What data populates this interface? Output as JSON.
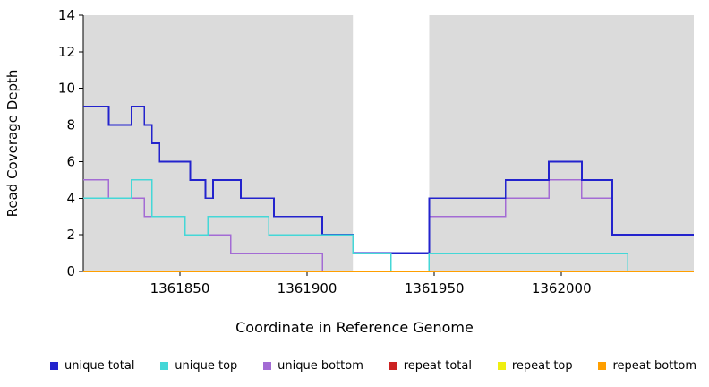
{
  "figure": {
    "background": "#FFFFFF"
  },
  "chart_data": {
    "type": "line",
    "subtype": "step",
    "title": "",
    "xlabel": "Coordinate in Reference Genome",
    "ylabel": "Read Coverage Depth",
    "xlim": [
      1361812,
      1362052
    ],
    "ylim": [
      0,
      14
    ],
    "x_ticks": [
      1361850,
      1361900,
      1361950,
      1362000
    ],
    "y_ticks": [
      0,
      2,
      4,
      6,
      8,
      10,
      12,
      14
    ],
    "grid": false,
    "plot_background": "#DBDBDB",
    "uncovered_region": {
      "from": 1361918,
      "to": 1361948,
      "color": "#FFFFFF"
    },
    "legend_position": "bottom",
    "series": [
      {
        "name": "unique total",
        "color": "#2323CD",
        "points": [
          [
            1361812,
            9
          ],
          [
            1361822,
            8
          ],
          [
            1361831,
            9
          ],
          [
            1361836,
            8
          ],
          [
            1361839,
            7
          ],
          [
            1361842,
            6
          ],
          [
            1361854,
            5
          ],
          [
            1361860,
            4
          ],
          [
            1361863,
            5
          ],
          [
            1361874,
            4
          ],
          [
            1361887,
            3
          ],
          [
            1361906,
            2
          ],
          [
            1361918,
            1
          ],
          [
            1361948,
            4
          ],
          [
            1361978,
            5
          ],
          [
            1361995,
            6
          ],
          [
            1362008,
            5
          ],
          [
            1362020,
            2
          ]
        ]
      },
      {
        "name": "unique top",
        "color": "#44D7D7",
        "points": [
          [
            1361812,
            4
          ],
          [
            1361831,
            5
          ],
          [
            1361839,
            3
          ],
          [
            1361852,
            2
          ],
          [
            1361861,
            3
          ],
          [
            1361885,
            2
          ],
          [
            1361918,
            1
          ],
          [
            1361933,
            0
          ],
          [
            1361948,
            1
          ],
          [
            1362026,
            0
          ]
        ]
      },
      {
        "name": "unique bottom",
        "color": "#A36BD4",
        "points": [
          [
            1361812,
            5
          ],
          [
            1361822,
            4
          ],
          [
            1361836,
            3
          ],
          [
            1361852,
            2
          ],
          [
            1361870,
            1
          ],
          [
            1361906,
            0
          ],
          [
            1361933,
            1
          ],
          [
            1361948,
            3
          ],
          [
            1361978,
            4
          ],
          [
            1361995,
            5
          ],
          [
            1362008,
            4
          ],
          [
            1362020,
            2
          ]
        ]
      },
      {
        "name": "repeat total",
        "color": "#CC2222",
        "points": [
          [
            1361812,
            0
          ]
        ]
      },
      {
        "name": "repeat top",
        "color": "#EFEF10",
        "points": [
          [
            1361812,
            0
          ]
        ]
      },
      {
        "name": "repeat bottom",
        "color": "#FF9F00",
        "points": [
          [
            1361812,
            0
          ]
        ]
      }
    ],
    "draw_order": [
      "repeat total",
      "repeat top",
      "unique bottom",
      "unique total",
      "unique top",
      "repeat bottom"
    ]
  }
}
